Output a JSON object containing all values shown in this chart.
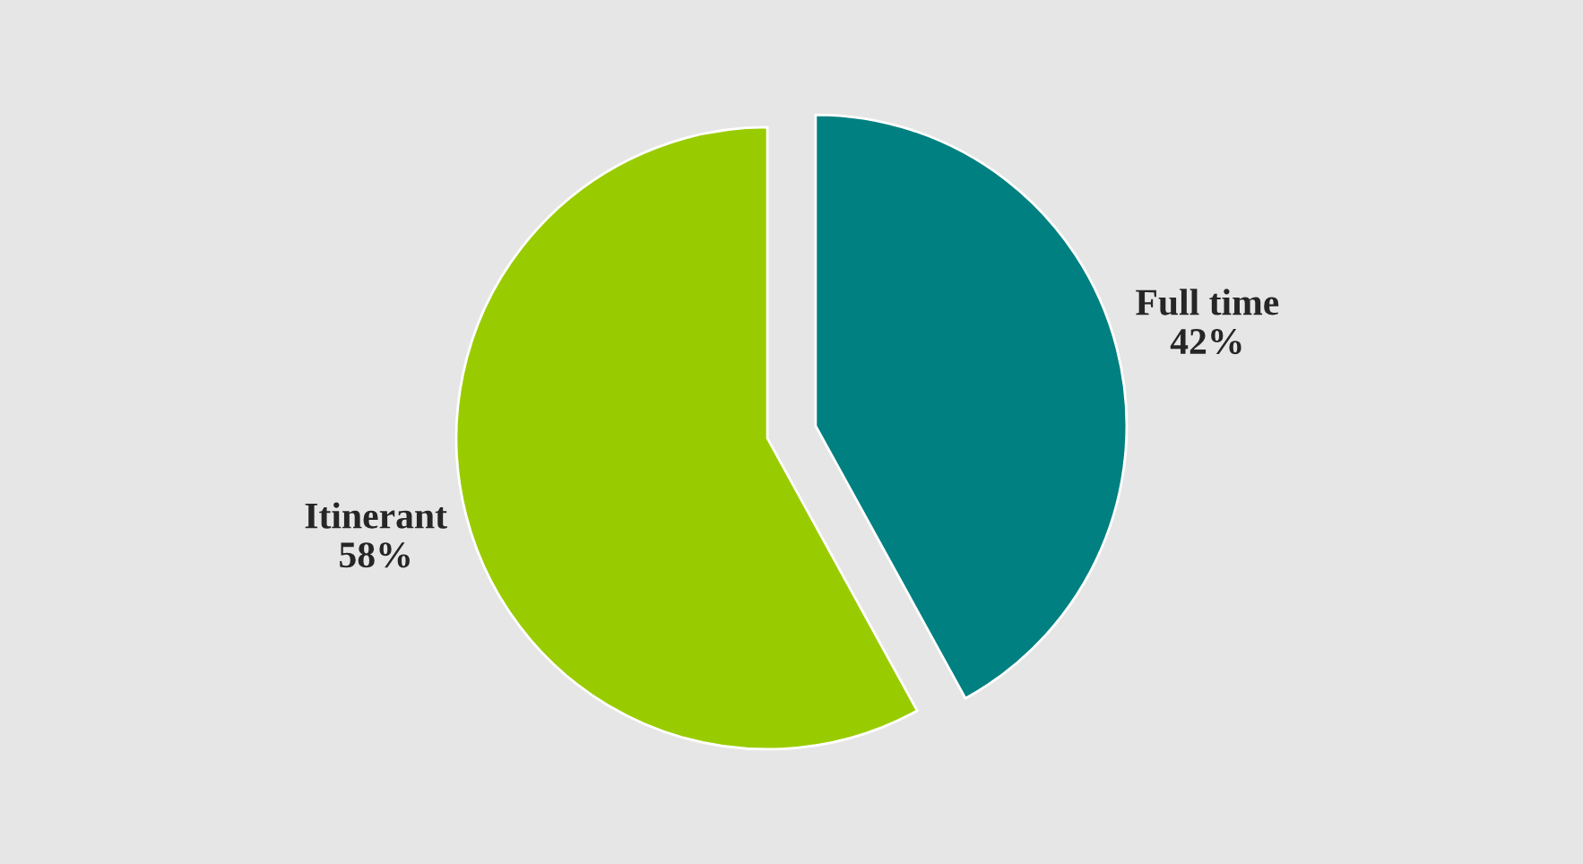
{
  "chart_data": {
    "type": "pie",
    "categories": [
      "Full time",
      "Itinerant"
    ],
    "values": [
      42,
      58
    ],
    "value_labels": [
      "42%",
      "58%"
    ],
    "colors": [
      "#008080",
      "#99cc00"
    ]
  }
}
